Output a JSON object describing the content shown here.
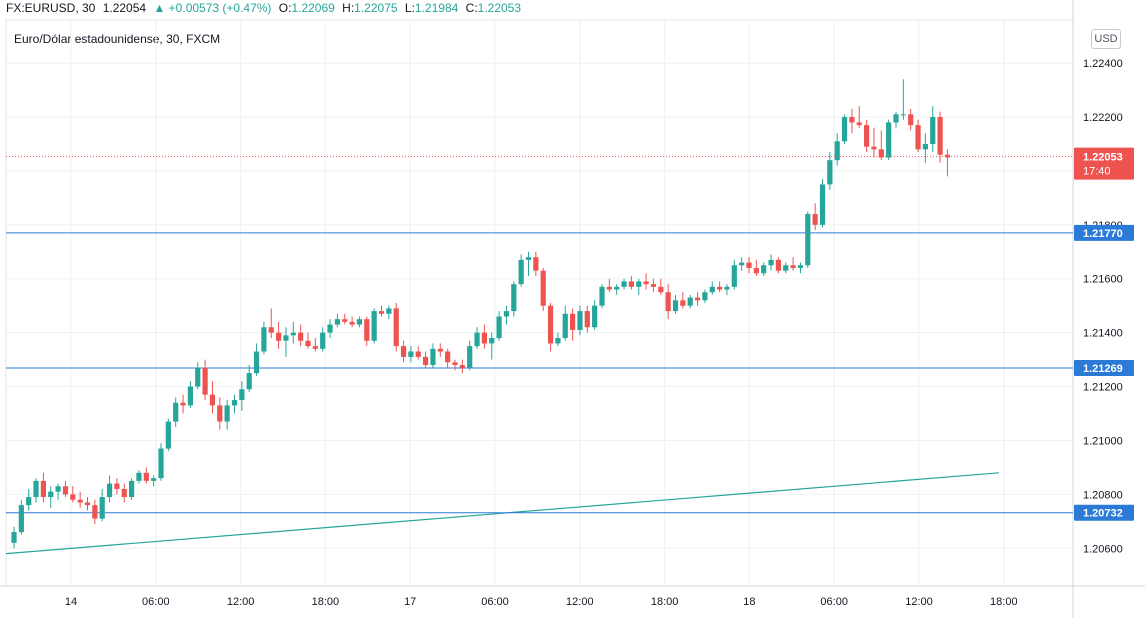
{
  "header": {
    "symbol": "FX:EURUSD, 30",
    "last": "1.22054",
    "change_arrow": "▲",
    "change": "+0.00573 (+0.47%)",
    "open_label": "O:",
    "open": "1.22069",
    "high_label": "H:",
    "high": "1.22075",
    "low_label": "L:",
    "low": "1.21984",
    "close_label": "C:",
    "close": "1.22053"
  },
  "subtitle": "Euro/Dólar estadounidense, 30, FXCM",
  "currency_badge": "USD",
  "colors": {
    "up": "#26a69a",
    "down": "#ef5350",
    "hline": "#2b7bd6",
    "trend": "#26a69a",
    "grid": "#eef0f3",
    "axis_text": "#131722"
  },
  "chart_data": {
    "type": "candlestick",
    "title": "Euro/Dólar estadounidense, 30, FXCM",
    "y_axis_labels": [
      "1.22400",
      "1.22200",
      "1.22000",
      "1.21800",
      "1.21600",
      "1.21400",
      "1.21200",
      "1.21000",
      "1.20800",
      "1.20600"
    ],
    "x_axis_labels": [
      "14",
      "06:00",
      "12:00",
      "18:00",
      "17",
      "06:00",
      "12:00",
      "18:00",
      "18",
      "06:00",
      "12:00",
      "18:00"
    ],
    "ylim": [
      1.2046,
      1.2256
    ],
    "grid": true,
    "last_price_label": "1.22053",
    "countdown": "17:40",
    "horizontal_lines": [
      "1.21770",
      "1.21269",
      "1.20732"
    ],
    "trend_line": {
      "from": [
        0,
        1.2058
      ],
      "to": [
        134,
        1.2088
      ]
    },
    "candles": [
      [
        1.2062,
        1.2068,
        1.206,
        1.2066
      ],
      [
        1.2066,
        1.2078,
        1.2065,
        1.2076
      ],
      [
        1.2076,
        1.2082,
        1.2074,
        1.2079
      ],
      [
        1.2079,
        1.2086,
        1.2077,
        1.2085
      ],
      [
        1.2085,
        1.2088,
        1.2077,
        1.2079
      ],
      [
        1.2079,
        1.2083,
        1.2075,
        1.2081
      ],
      [
        1.2081,
        1.2084,
        1.2078,
        1.2083
      ],
      [
        1.2083,
        1.2085,
        1.2079,
        1.208
      ],
      [
        1.208,
        1.2083,
        1.2077,
        1.2078
      ],
      [
        1.2078,
        1.2081,
        1.2075,
        1.2077
      ],
      [
        1.2077,
        1.2079,
        1.2074,
        1.2076
      ],
      [
        1.2076,
        1.2078,
        1.2069,
        1.2071
      ],
      [
        1.2071,
        1.2082,
        1.207,
        1.2079
      ],
      [
        1.2079,
        1.2087,
        1.2077,
        1.2084
      ],
      [
        1.2084,
        1.2086,
        1.208,
        1.2082
      ],
      [
        1.2082,
        1.2084,
        1.2077,
        1.2079
      ],
      [
        1.2079,
        1.2086,
        1.2078,
        1.2085
      ],
      [
        1.2085,
        1.2089,
        1.2084,
        1.2088
      ],
      [
        1.2088,
        1.209,
        1.2084,
        1.2085
      ],
      [
        1.2085,
        1.2087,
        1.2083,
        1.2086
      ],
      [
        1.2086,
        1.2099,
        1.2085,
        1.2097
      ],
      [
        1.2097,
        1.2108,
        1.2096,
        1.2107
      ],
      [
        1.2107,
        1.2116,
        1.2105,
        1.2114
      ],
      [
        1.2114,
        1.2117,
        1.211,
        1.2113
      ],
      [
        1.2113,
        1.2122,
        1.2112,
        1.212
      ],
      [
        1.212,
        1.2129,
        1.2119,
        1.2127
      ],
      [
        1.2127,
        1.213,
        1.2115,
        1.2117
      ],
      [
        1.2117,
        1.2122,
        1.211,
        1.2113
      ],
      [
        1.2113,
        1.2116,
        1.2104,
        1.2107
      ],
      [
        1.2107,
        1.2115,
        1.2104,
        1.2113
      ],
      [
        1.2113,
        1.2117,
        1.211,
        1.2115
      ],
      [
        1.2115,
        1.2122,
        1.2111,
        1.2119
      ],
      [
        1.2119,
        1.2128,
        1.2118,
        1.2125
      ],
      [
        1.2125,
        1.2136,
        1.2124,
        1.2133
      ],
      [
        1.2133,
        1.2144,
        1.2132,
        1.2142
      ],
      [
        1.2142,
        1.2149,
        1.2138,
        1.214
      ],
      [
        1.214,
        1.2144,
        1.2134,
        1.2137
      ],
      [
        1.2137,
        1.2142,
        1.2131,
        1.2139
      ],
      [
        1.2139,
        1.2144,
        1.2136,
        1.214
      ],
      [
        1.214,
        1.2143,
        1.2135,
        1.2137
      ],
      [
        1.2137,
        1.214,
        1.2134,
        1.2135
      ],
      [
        1.2135,
        1.2138,
        1.2133,
        1.2134
      ],
      [
        1.2134,
        1.2142,
        1.2133,
        1.214
      ],
      [
        1.214,
        1.2145,
        1.2138,
        1.2143
      ],
      [
        1.2143,
        1.2147,
        1.2142,
        1.2145
      ],
      [
        1.2145,
        1.2147,
        1.2143,
        1.2144
      ],
      [
        1.2144,
        1.2146,
        1.2142,
        1.2143
      ],
      [
        1.2143,
        1.2146,
        1.2142,
        1.2145
      ],
      [
        1.2145,
        1.2146,
        1.2135,
        1.2137
      ],
      [
        1.2137,
        1.2149,
        1.2136,
        1.2148
      ],
      [
        1.2148,
        1.215,
        1.2146,
        1.2147
      ],
      [
        1.2147,
        1.215,
        1.2145,
        1.2149
      ],
      [
        1.2149,
        1.2151,
        1.2133,
        1.2135
      ],
      [
        1.2135,
        1.2137,
        1.2129,
        1.2131
      ],
      [
        1.2131,
        1.2135,
        1.2129,
        1.2133
      ],
      [
        1.2133,
        1.2135,
        1.213,
        1.2131
      ],
      [
        1.2131,
        1.2133,
        1.2127,
        1.2128
      ],
      [
        1.2128,
        1.2136,
        1.2127,
        1.2134
      ],
      [
        1.2134,
        1.2136,
        1.2131,
        1.2133
      ],
      [
        1.2133,
        1.2134,
        1.2127,
        1.2129
      ],
      [
        1.2129,
        1.213,
        1.2126,
        1.2128
      ],
      [
        1.2128,
        1.213,
        1.2125,
        1.2127
      ],
      [
        1.2127,
        1.2137,
        1.2126,
        1.2135
      ],
      [
        1.2135,
        1.2142,
        1.2134,
        1.214
      ],
      [
        1.214,
        1.2143,
        1.2134,
        1.2136
      ],
      [
        1.2136,
        1.214,
        1.213,
        1.2138
      ],
      [
        1.2138,
        1.2148,
        1.2137,
        1.2146
      ],
      [
        1.2146,
        1.215,
        1.2143,
        1.2148
      ],
      [
        1.2148,
        1.2159,
        1.2146,
        1.2158
      ],
      [
        1.2158,
        1.2169,
        1.2157,
        1.2167
      ],
      [
        1.2167,
        1.217,
        1.2161,
        1.2168
      ],
      [
        1.2168,
        1.217,
        1.2161,
        1.2163
      ],
      [
        1.2163,
        1.2164,
        1.2148,
        1.215
      ],
      [
        1.215,
        1.2151,
        1.2133,
        1.2136
      ],
      [
        1.2136,
        1.214,
        1.2135,
        1.2138
      ],
      [
        1.2138,
        1.215,
        1.2137,
        1.2147
      ],
      [
        1.2147,
        1.2149,
        1.2137,
        1.2141
      ],
      [
        1.2141,
        1.215,
        1.2139,
        1.2148
      ],
      [
        1.2148,
        1.215,
        1.214,
        1.2142
      ],
      [
        1.2142,
        1.2152,
        1.2141,
        1.215
      ],
      [
        1.215,
        1.2158,
        1.2149,
        1.2157
      ],
      [
        1.2157,
        1.216,
        1.2155,
        1.2156
      ],
      [
        1.2156,
        1.2158,
        1.2154,
        1.2157
      ],
      [
        1.2157,
        1.216,
        1.2156,
        1.2159
      ],
      [
        1.2159,
        1.2161,
        1.2156,
        1.2157
      ],
      [
        1.2157,
        1.216,
        1.2154,
        1.2159
      ],
      [
        1.2159,
        1.2162,
        1.2156,
        1.2158
      ],
      [
        1.2158,
        1.216,
        1.2155,
        1.2157
      ],
      [
        1.2157,
        1.216,
        1.2154,
        1.2155
      ],
      [
        1.2155,
        1.2158,
        1.2145,
        1.2148
      ],
      [
        1.2148,
        1.2154,
        1.2147,
        1.2152
      ],
      [
        1.2152,
        1.2155,
        1.2149,
        1.215
      ],
      [
        1.215,
        1.2154,
        1.2149,
        1.2153
      ],
      [
        1.2153,
        1.2155,
        1.215,
        1.2152
      ],
      [
        1.2152,
        1.2156,
        1.2151,
        1.2155
      ],
      [
        1.2155,
        1.2159,
        1.2154,
        1.2157
      ],
      [
        1.2157,
        1.2159,
        1.2155,
        1.2156
      ],
      [
        1.2156,
        1.2158,
        1.2154,
        1.2157
      ],
      [
        1.2157,
        1.2167,
        1.2156,
        1.2165
      ],
      [
        1.2165,
        1.2168,
        1.2163,
        1.2166
      ],
      [
        1.2166,
        1.2168,
        1.2162,
        1.2164
      ],
      [
        1.2164,
        1.2167,
        1.2161,
        1.2162
      ],
      [
        1.2162,
        1.2166,
        1.2161,
        1.2165
      ],
      [
        1.2165,
        1.2169,
        1.2163,
        1.2167
      ],
      [
        1.2167,
        1.2168,
        1.2162,
        1.2163
      ],
      [
        1.2163,
        1.2166,
        1.2162,
        1.2165
      ],
      [
        1.2165,
        1.2168,
        1.2163,
        1.2164
      ],
      [
        1.2164,
        1.2166,
        1.2162,
        1.2165
      ],
      [
        1.2165,
        1.2185,
        1.2164,
        1.2184
      ],
      [
        1.2184,
        1.2188,
        1.2178,
        1.218
      ],
      [
        1.218,
        1.2197,
        1.2179,
        1.2195
      ],
      [
        1.2195,
        1.2207,
        1.2193,
        1.2204
      ],
      [
        1.2204,
        1.2214,
        1.2202,
        1.2211
      ],
      [
        1.2211,
        1.2221,
        1.221,
        1.222
      ],
      [
        1.222,
        1.2223,
        1.2214,
        1.2218
      ],
      [
        1.2218,
        1.2224,
        1.2216,
        1.2217
      ],
      [
        1.2217,
        1.2219,
        1.2207,
        1.2209
      ],
      [
        1.2209,
        1.2216,
        1.2205,
        1.2208
      ],
      [
        1.2208,
        1.2215,
        1.2204,
        1.2205
      ],
      [
        1.2205,
        1.2219,
        1.2204,
        1.2218
      ],
      [
        1.2218,
        1.2222,
        1.2216,
        1.2221
      ],
      [
        1.2221,
        1.2234,
        1.2219,
        1.2221
      ],
      [
        1.2221,
        1.2223,
        1.2215,
        1.2217
      ],
      [
        1.2217,
        1.2219,
        1.2207,
        1.2208
      ],
      [
        1.2208,
        1.2214,
        1.2203,
        1.221
      ],
      [
        1.221,
        1.2224,
        1.2207,
        1.222
      ],
      [
        1.222,
        1.2222,
        1.2203,
        1.2206
      ],
      [
        1.2206,
        1.2208,
        1.2198,
        1.2205
      ]
    ]
  }
}
